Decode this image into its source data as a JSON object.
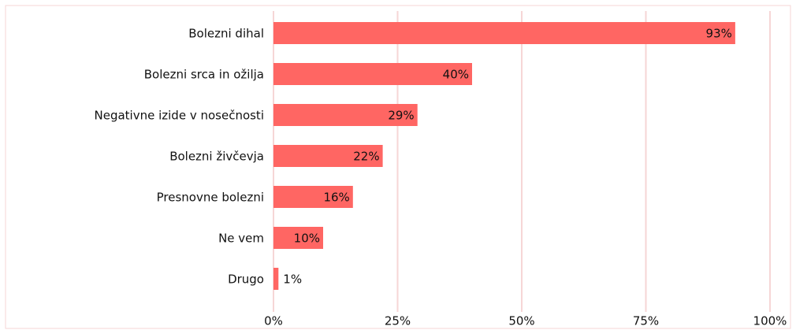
{
  "chart_data": {
    "type": "bar",
    "orientation": "horizontal",
    "categories": [
      "Bolezni dihal",
      "Bolezni srca in ožilja",
      "Negativne izide v nosečnosti",
      "Bolezni živčevja",
      "Presnovne bolezni",
      "Ne vem",
      "Drugo"
    ],
    "values": [
      93,
      40,
      29,
      22,
      16,
      10,
      1
    ],
    "value_labels": [
      "93%",
      "40%",
      "29%",
      "22%",
      "16%",
      "10%",
      "1%"
    ],
    "color": "#ff6663",
    "xlim": [
      0,
      100
    ],
    "xticks": [
      {
        "value": 0,
        "label": "0%"
      },
      {
        "value": 25,
        "label": "25%"
      },
      {
        "value": 50,
        "label": "50%"
      },
      {
        "value": 75,
        "label": "75%"
      },
      {
        "value": 100,
        "label": "100%"
      }
    ],
    "grid": true
  }
}
